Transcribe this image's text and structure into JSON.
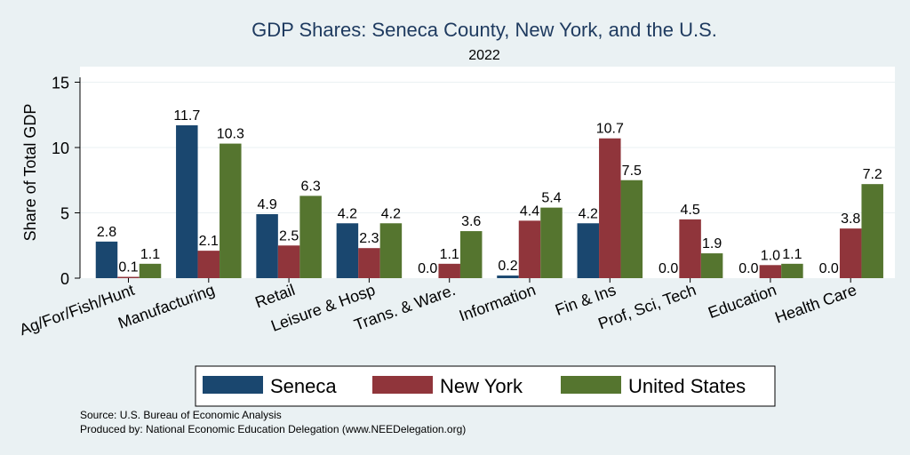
{
  "chart_data": {
    "type": "bar",
    "title": "GDP Shares: Seneca County, New York, and the U.S.",
    "subtitle": "2022",
    "ylabel": "Share of Total GDP",
    "xlabel": "",
    "ylim": [
      0,
      16
    ],
    "yticks": [
      0,
      5,
      10,
      15
    ],
    "grid": true,
    "legend_position": "bottom",
    "categories": [
      "Ag/For/Fish/Hunt",
      "Manufacturing",
      "Retail",
      "Leisure & Hosp",
      "Trans. & Ware.",
      "Information",
      "Fin & Ins",
      "Prof, Sci, Tech",
      "Education",
      "Health Care"
    ],
    "series": [
      {
        "name": "Seneca",
        "color": "#1a476f",
        "values": [
          2.8,
          11.7,
          4.9,
          4.2,
          0.0,
          0.2,
          4.2,
          0.0,
          0.0,
          0.0
        ]
      },
      {
        "name": "New York",
        "color": "#90353b",
        "values": [
          0.1,
          2.1,
          2.5,
          2.3,
          1.1,
          4.4,
          10.7,
          4.5,
          1.0,
          3.8
        ]
      },
      {
        "name": "United States",
        "color": "#55752f",
        "values": [
          1.1,
          10.3,
          6.3,
          4.2,
          3.6,
          5.4,
          7.5,
          1.9,
          1.1,
          7.2
        ]
      }
    ]
  },
  "notes": {
    "source": "Source: U.S. Bureau of Economic Analysis",
    "produced_by": "Produced by: National Economic Education Delegation (www.NEEDelegation.org)"
  }
}
